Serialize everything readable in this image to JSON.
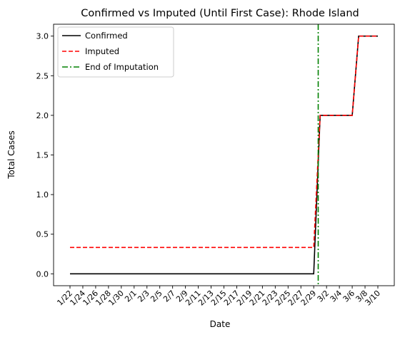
{
  "chart_data": {
    "type": "line",
    "title": "Confirmed vs Imputed (Until First Case): Rhode Island",
    "xlabel": "Date",
    "ylabel": "Total Cases",
    "x": [
      "1/22",
      "1/23",
      "1/24",
      "1/25",
      "1/26",
      "1/27",
      "1/28",
      "1/29",
      "1/30",
      "1/31",
      "2/1",
      "2/2",
      "2/3",
      "2/4",
      "2/5",
      "2/6",
      "2/7",
      "2/8",
      "2/9",
      "2/10",
      "2/11",
      "2/12",
      "2/13",
      "2/14",
      "2/15",
      "2/16",
      "2/17",
      "2/18",
      "2/19",
      "2/20",
      "2/21",
      "2/22",
      "2/23",
      "2/24",
      "2/25",
      "2/26",
      "2/27",
      "2/28",
      "2/29",
      "3/1",
      "3/2",
      "3/3",
      "3/4",
      "3/5",
      "3/6",
      "3/7",
      "3/8",
      "3/9",
      "3/10"
    ],
    "x_tick_labels": [
      "1/22",
      "1/24",
      "1/26",
      "1/28",
      "1/30",
      "2/1",
      "2/3",
      "2/5",
      "2/7",
      "2/9",
      "2/11",
      "2/13",
      "2/15",
      "2/17",
      "2/19",
      "2/21",
      "2/23",
      "2/25",
      "2/27",
      "2/29",
      "3/2",
      "3/4",
      "3/6",
      "3/8",
      "3/10"
    ],
    "y_ticks": [
      "0.0",
      "0.5",
      "1.0",
      "1.5",
      "2.0",
      "2.5",
      "3.0"
    ],
    "ylim": [
      -0.15,
      3.15
    ],
    "series": [
      {
        "name": "Confirmed",
        "color": "#000000",
        "style": "solid",
        "values": [
          0,
          0,
          0,
          0,
          0,
          0,
          0,
          0,
          0,
          0,
          0,
          0,
          0,
          0,
          0,
          0,
          0,
          0,
          0,
          0,
          0,
          0,
          0,
          0,
          0,
          0,
          0,
          0,
          0,
          0,
          0,
          0,
          0,
          0,
          0,
          0,
          0,
          0,
          0,
          2,
          2,
          2,
          2,
          2,
          2,
          3,
          3,
          3,
          3
        ]
      },
      {
        "name": "Imputed",
        "color": "#ff0000",
        "style": "dashed",
        "values": [
          0.333,
          0.333,
          0.333,
          0.333,
          0.333,
          0.333,
          0.333,
          0.333,
          0.333,
          0.333,
          0.333,
          0.333,
          0.333,
          0.333,
          0.333,
          0.333,
          0.333,
          0.333,
          0.333,
          0.333,
          0.333,
          0.333,
          0.333,
          0.333,
          0.333,
          0.333,
          0.333,
          0.333,
          0.333,
          0.333,
          0.333,
          0.333,
          0.333,
          0.333,
          0.333,
          0.333,
          0.333,
          0.333,
          0.333,
          2,
          2,
          2,
          2,
          2,
          2,
          3,
          3,
          3,
          3
        ]
      }
    ],
    "vline": {
      "name": "End of Imputation",
      "color": "#008000",
      "style": "dashdot",
      "x": 38.7
    },
    "legend_position": "top-left",
    "grid": false
  }
}
